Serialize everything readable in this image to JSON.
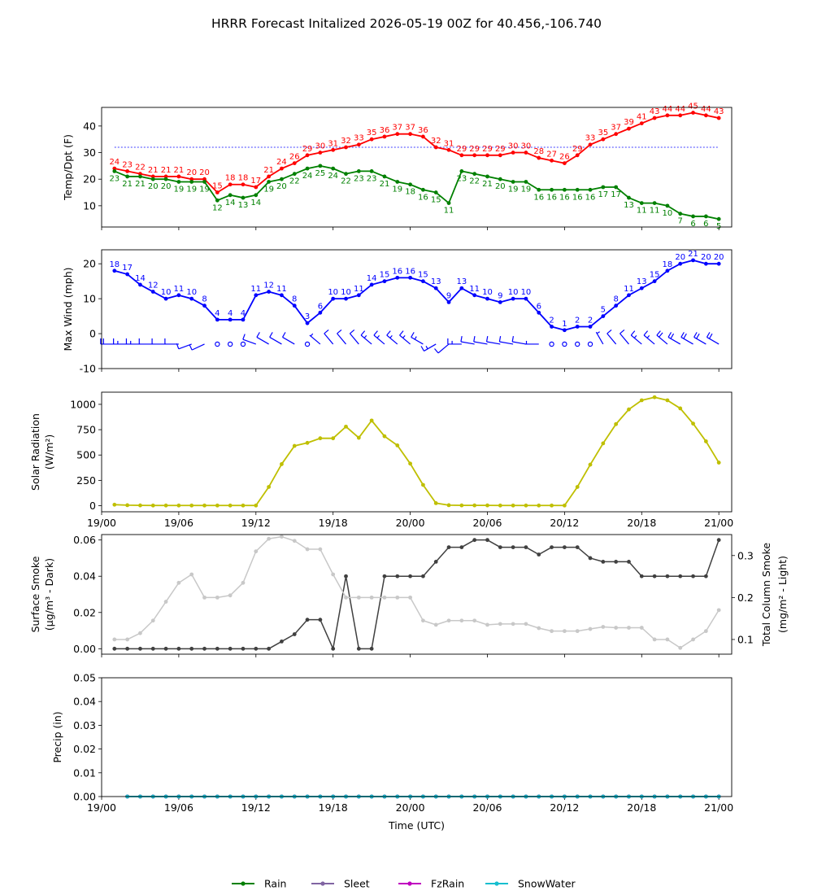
{
  "title": "HRRR Forecast Initalized 2026-05-19 00Z for 40.456,-106.740",
  "colors": {
    "temp": "#ff0000",
    "dewpoint": "#008000",
    "wind": "#0000ff",
    "solar": "#bfbf00",
    "smoke_surface": "#404040",
    "smoke_column": "#c8c8c8",
    "rain": "#008000",
    "sleet": "#8064a2",
    "fzrain": "#bf00bf",
    "snowwater": "#17becf"
  },
  "chart_data": [
    {
      "type": "line",
      "ylabel": "Temp/Dpt (F)",
      "ylim": [
        2,
        47
      ],
      "yticks": [
        10,
        20,
        30,
        40
      ],
      "reference_line": 32,
      "x_hours": [
        1,
        2,
        3,
        4,
        5,
        6,
        7,
        8,
        9,
        10,
        11,
        12,
        13,
        14,
        15,
        16,
        17,
        18,
        19,
        20,
        21,
        22,
        23,
        24,
        25,
        26,
        27,
        28,
        29,
        30,
        31,
        32,
        33,
        34,
        35,
        36,
        37,
        38,
        39,
        40,
        41,
        42,
        43,
        44,
        45,
        46,
        47,
        48
      ],
      "series": [
        {
          "key": "temp",
          "values": [
            24,
            23,
            22,
            21,
            21,
            21,
            20,
            20,
            15,
            18,
            18,
            17,
            21,
            24,
            26,
            29,
            30,
            31,
            32,
            33,
            35,
            36,
            37,
            37,
            36,
            32,
            31,
            29,
            29,
            29,
            29,
            30,
            30,
            28,
            27,
            26,
            29,
            33,
            35,
            37,
            39,
            41,
            43,
            44,
            44,
            45,
            44,
            43
          ]
        },
        {
          "key": "dewpoint",
          "values": [
            23,
            21,
            21,
            20,
            20,
            19,
            19,
            19,
            12,
            14,
            13,
            14,
            19,
            20,
            22,
            24,
            25,
            24,
            22,
            23,
            23,
            21,
            19,
            18,
            16,
            15,
            11,
            23,
            22,
            21,
            20,
            19,
            19,
            16,
            16,
            16,
            16,
            16,
            17,
            17,
            13,
            11,
            11,
            10,
            7,
            6,
            6,
            5
          ]
        }
      ]
    },
    {
      "type": "line",
      "ylabel": "Max Wind (mph)",
      "ylim": [
        -10,
        24
      ],
      "yticks": [
        -10,
        0,
        10,
        20
      ],
      "x_hours": [
        1,
        2,
        3,
        4,
        5,
        6,
        7,
        8,
        9,
        10,
        11,
        12,
        13,
        14,
        15,
        16,
        17,
        18,
        19,
        20,
        21,
        22,
        23,
        24,
        25,
        26,
        27,
        28,
        29,
        30,
        31,
        32,
        33,
        34,
        35,
        36,
        37,
        38,
        39,
        40,
        41,
        42,
        43,
        44,
        45,
        46,
        47,
        48
      ],
      "series": [
        {
          "key": "wind",
          "values": [
            18,
            17,
            14,
            12,
            10,
            11,
            10,
            8,
            4,
            4,
            4,
            11,
            12,
            11,
            8,
            3,
            6,
            10,
            10,
            11,
            14,
            15,
            16,
            16,
            15,
            13,
            9,
            13,
            11,
            10,
            9,
            10,
            10,
            6,
            2,
            1,
            2,
            2,
            5,
            8,
            11,
            13,
            15,
            18,
            20,
            21,
            20,
            20
          ]
        }
      ]
    },
    {
      "type": "line",
      "ylabel": "Solar Radiation",
      "ylabel2": "(W/m²)",
      "ylim": [
        -60,
        1120
      ],
      "yticks": [
        0,
        250,
        500,
        750,
        1000
      ],
      "x_hours": [
        1,
        2,
        3,
        4,
        5,
        6,
        7,
        8,
        9,
        10,
        11,
        12,
        13,
        14,
        15,
        16,
        17,
        18,
        19,
        20,
        21,
        22,
        23,
        24,
        25,
        26,
        27,
        28,
        29,
        30,
        31,
        32,
        33,
        34,
        35,
        36,
        37,
        38,
        39,
        40,
        41,
        42,
        43,
        44,
        45,
        46,
        47,
        48
      ],
      "series": [
        {
          "key": "solar",
          "values": [
            10,
            5,
            3,
            2,
            2,
            2,
            2,
            2,
            2,
            2,
            2,
            2,
            185,
            410,
            590,
            620,
            665,
            665,
            780,
            670,
            840,
            685,
            595,
            415,
            205,
            25,
            5,
            3,
            3,
            3,
            2,
            2,
            2,
            2,
            2,
            2,
            185,
            405,
            615,
            805,
            950,
            1040,
            1070,
            1040,
            960,
            810,
            635,
            425
          ]
        }
      ]
    },
    {
      "type": "line",
      "ylabel": "Surface Smoke",
      "ylabel2": "(μg/m³ - Dark)",
      "ylabel_right": "Total Column Smoke",
      "ylabel_right2": "(mg/m² - Light)",
      "ylim": [
        -0.003,
        0.063
      ],
      "yticks": [
        0.0,
        0.02,
        0.04,
        0.06
      ],
      "ylim_right": [
        0.065,
        0.35
      ],
      "yticks_right": [
        0.1,
        0.2,
        0.3
      ],
      "x_hours": [
        1,
        2,
        3,
        4,
        5,
        6,
        7,
        8,
        9,
        10,
        11,
        12,
        13,
        14,
        15,
        16,
        17,
        18,
        19,
        20,
        21,
        22,
        23,
        24,
        25,
        26,
        27,
        28,
        29,
        30,
        31,
        32,
        33,
        34,
        35,
        36,
        37,
        38,
        39,
        40,
        41,
        42,
        43,
        44,
        45,
        46,
        47,
        48
      ],
      "series": [
        {
          "key": "smoke_surface",
          "axis": "left",
          "values": [
            0,
            0,
            0,
            0,
            0,
            0,
            0,
            0,
            0,
            0,
            0,
            0,
            0,
            0.004,
            0.008,
            0.016,
            0.016,
            0,
            0.04,
            0,
            0,
            0.04,
            0.04,
            0.04,
            0.04,
            0.048,
            0.056,
            0.056,
            0.06,
            0.06,
            0.056,
            0.056,
            0.056,
            0.052,
            0.056,
            0.056,
            0.056,
            0.05,
            0.048,
            0.048,
            0.048,
            0.04,
            0.04,
            0.04,
            0.04,
            0.04,
            0.04,
            0.06
          ]
        },
        {
          "key": "smoke_column",
          "axis": "right",
          "values": [
            0.1,
            0.1,
            0.115,
            0.145,
            0.19,
            0.235,
            0.255,
            0.2,
            0.2,
            0.205,
            0.235,
            0.31,
            0.34,
            0.345,
            0.335,
            0.315,
            0.315,
            0.255,
            0.2,
            0.2,
            0.2,
            0.2,
            0.2,
            0.2,
            0.145,
            0.135,
            0.145,
            0.145,
            0.145,
            0.135,
            0.137,
            0.137,
            0.137,
            0.127,
            0.12,
            0.12,
            0.12,
            0.125,
            0.13,
            0.128,
            0.128,
            0.128,
            0.1,
            0.1,
            0.08,
            0.1,
            0.12,
            0.17
          ]
        }
      ]
    },
    {
      "type": "line",
      "ylabel": "Precip (in)",
      "xlabel": "Time (UTC)",
      "ylim": [
        0,
        0.05
      ],
      "yticks": [
        0.0,
        0.01,
        0.02,
        0.03,
        0.04,
        0.05
      ],
      "x_hours": [
        2,
        3,
        4,
        5,
        6,
        7,
        8,
        9,
        10,
        11,
        12,
        13,
        14,
        15,
        16,
        17,
        18,
        19,
        20,
        21,
        22,
        23,
        24,
        25,
        26,
        27,
        28,
        29,
        30,
        31,
        32,
        33,
        34,
        35,
        36,
        37,
        38,
        39,
        40,
        41,
        42,
        43,
        44,
        45,
        46,
        47,
        48
      ],
      "series": [
        {
          "key": "rain",
          "name": "Rain",
          "values": [
            0,
            0,
            0,
            0,
            0,
            0,
            0,
            0,
            0,
            0,
            0,
            0,
            0,
            0,
            0,
            0,
            0,
            0,
            0,
            0,
            0,
            0,
            0,
            0,
            0,
            0,
            0,
            0,
            0,
            0,
            0,
            0,
            0,
            0,
            0,
            0,
            0,
            0,
            0,
            0,
            0,
            0,
            0,
            0,
            0,
            0,
            0
          ]
        },
        {
          "key": "sleet",
          "name": "Sleet",
          "values": [
            0,
            0,
            0,
            0,
            0,
            0,
            0,
            0,
            0,
            0,
            0,
            0,
            0,
            0,
            0,
            0,
            0,
            0,
            0,
            0,
            0,
            0,
            0,
            0,
            0,
            0,
            0,
            0,
            0,
            0,
            0,
            0,
            0,
            0,
            0,
            0,
            0,
            0,
            0,
            0,
            0,
            0,
            0,
            0,
            0,
            0,
            0
          ]
        },
        {
          "key": "fzrain",
          "name": "FzRain",
          "values": [
            0,
            0,
            0,
            0,
            0,
            0,
            0,
            0,
            0,
            0,
            0,
            0,
            0,
            0,
            0,
            0,
            0,
            0,
            0,
            0,
            0,
            0,
            0,
            0,
            0,
            0,
            0,
            0,
            0,
            0,
            0,
            0,
            0,
            0,
            0,
            0,
            0,
            0,
            0,
            0,
            0,
            0,
            0,
            0,
            0,
            0,
            0
          ]
        },
        {
          "key": "snowwater",
          "name": "SnowWater",
          "values": [
            0,
            0,
            0,
            0,
            0,
            0,
            0,
            0,
            0,
            0,
            0,
            0,
            0,
            0,
            0,
            0,
            0,
            0,
            0,
            0,
            0,
            0,
            0,
            0,
            0,
            0,
            0,
            0,
            0,
            0,
            0,
            0,
            0,
            0,
            0,
            0,
            0,
            0,
            0,
            0,
            0,
            0,
            0,
            0,
            0,
            0,
            0
          ]
        }
      ]
    }
  ],
  "x_axis": {
    "range_hours": [
      0,
      49
    ],
    "tick_hours": [
      0,
      6,
      12,
      18,
      24,
      30,
      36,
      42,
      48
    ],
    "tick_labels": [
      "19/00",
      "19/06",
      "19/12",
      "19/18",
      "20/00",
      "20/06",
      "20/12",
      "20/18",
      "21/00"
    ],
    "labeled_panels": [
      2,
      4
    ]
  },
  "wind_barbs": {
    "speeds": [
      18,
      17,
      14,
      12,
      10,
      11,
      10,
      8,
      4,
      4,
      4,
      11,
      12,
      11,
      8,
      3,
      6,
      10,
      10,
      11,
      14,
      15,
      16,
      16,
      15,
      13,
      9,
      13,
      11,
      10,
      9,
      10,
      10,
      6,
      2,
      1,
      2,
      2,
      5,
      8,
      11,
      13,
      15,
      18,
      20,
      21,
      20,
      20
    ],
    "dir_deg": [
      270,
      270,
      270,
      270,
      270,
      270,
      250,
      245,
      180,
      200,
      90,
      290,
      300,
      300,
      300,
      330,
      310,
      320,
      320,
      320,
      310,
      310,
      310,
      310,
      300,
      240,
      230,
      270,
      280,
      280,
      280,
      280,
      280,
      270,
      0,
      0,
      0,
      0,
      330,
      320,
      320,
      310,
      310,
      310,
      300,
      300,
      300,
      300
    ]
  },
  "legend": {
    "placement": "bottom-center",
    "items": [
      {
        "key": "rain",
        "label": "Rain"
      },
      {
        "key": "sleet",
        "label": "Sleet"
      },
      {
        "key": "fzrain",
        "label": "FzRain"
      },
      {
        "key": "snowwater",
        "label": "SnowWater"
      }
    ]
  }
}
